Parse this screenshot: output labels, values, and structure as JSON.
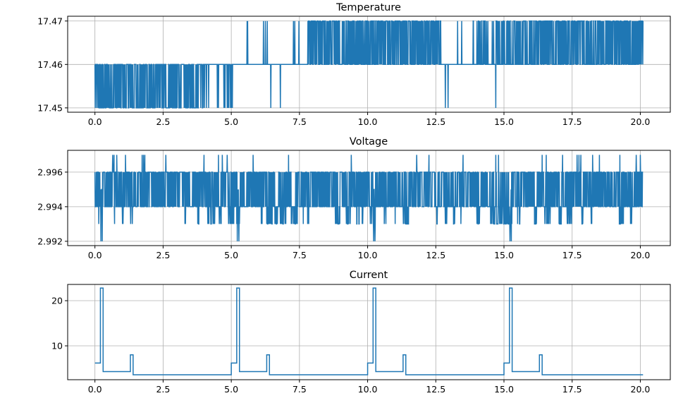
{
  "chart_data": [
    {
      "type": "line",
      "title": "Temperature",
      "xlabel": "",
      "ylabel": "",
      "xlim": [
        -1.0,
        21.1
      ],
      "ylim": [
        17.449,
        17.4711
      ],
      "xticks": [
        0.0,
        2.5,
        5.0,
        7.5,
        10.0,
        12.5,
        15.0,
        17.5,
        20.0
      ],
      "xtick_labels": [
        "0.0",
        "2.5",
        "5.0",
        "7.5",
        "10.0",
        "12.5",
        "15.0",
        "17.5",
        "20.0"
      ],
      "yticks": [
        17.45,
        17.46,
        17.47
      ],
      "ytick_labels": [
        "17.45",
        "17.46",
        "17.47"
      ],
      "grid": true,
      "color": "#1f77b4",
      "x_end": 20.1,
      "sample_step": 0.01,
      "regimes": [
        {
          "from": 0.0,
          "to": 3.8,
          "base": 17.46,
          "alt": 17.45,
          "alt_fraction": 0.5
        },
        {
          "from": 3.8,
          "to": 5.05,
          "base": 17.46,
          "alt": 17.45,
          "alt_fraction": 0.12
        },
        {
          "from": 5.05,
          "to": 7.8,
          "base": 17.46,
          "alt": 17.47,
          "alt_fraction": 0.0
        },
        {
          "from": 7.8,
          "to": 12.7,
          "base": 17.46,
          "alt": 17.47,
          "alt_fraction": 0.5
        },
        {
          "from": 12.7,
          "to": 13.8,
          "base": 17.46,
          "alt": 17.47,
          "alt_fraction": 0.0
        },
        {
          "from": 13.8,
          "to": 15.9,
          "base": 17.46,
          "alt": 17.47,
          "alt_fraction": 0.3
        },
        {
          "from": 15.9,
          "to": 20.1,
          "base": 17.46,
          "alt": 17.47,
          "alt_fraction": 0.5
        }
      ],
      "spikes": [
        [
          5.58,
          17.47
        ],
        [
          5.6,
          17.47
        ],
        [
          6.18,
          17.47
        ],
        [
          6.25,
          17.47
        ],
        [
          6.32,
          17.47
        ],
        [
          7.28,
          17.47
        ],
        [
          7.33,
          17.47
        ],
        [
          7.48,
          17.47
        ],
        [
          6.45,
          17.45
        ],
        [
          6.8,
          17.45
        ],
        [
          12.85,
          17.45
        ],
        [
          12.95,
          17.45
        ],
        [
          13.3,
          17.47
        ],
        [
          13.45,
          17.47
        ],
        [
          14.7,
          17.45
        ]
      ]
    },
    {
      "type": "line",
      "title": "Voltage",
      "xlabel": "",
      "ylabel": "",
      "xlim": [
        -1.0,
        21.1
      ],
      "ylim": [
        2.99175,
        2.99726
      ],
      "xticks": [
        0.0,
        2.5,
        5.0,
        7.5,
        10.0,
        12.5,
        15.0,
        17.5,
        20.0
      ],
      "xtick_labels": [
        "0.0",
        "2.5",
        "5.0",
        "7.5",
        "10.0",
        "12.5",
        "15.0",
        "17.5",
        "20.0"
      ],
      "yticks": [
        2.992,
        2.994,
        2.996
      ],
      "ytick_labels": [
        "2.992",
        "2.994",
        "2.996"
      ],
      "grid": true,
      "color": "#1f77b4",
      "x_end": 20.1,
      "sample_step": 0.01,
      "band_levels": [
        2.994,
        2.995,
        2.996
      ],
      "dip_2993_ranges": [
        [
          0.1,
          0.15
        ],
        [
          0.7,
          0.75
        ],
        [
          1.0,
          1.05
        ],
        [
          1.3,
          1.4
        ],
        [
          3.3,
          3.33
        ],
        [
          3.7,
          3.85
        ],
        [
          4.1,
          4.4
        ],
        [
          4.55,
          4.65
        ],
        [
          4.9,
          5.3
        ],
        [
          5.5,
          5.55
        ],
        [
          6.1,
          6.15
        ],
        [
          6.3,
          6.5
        ],
        [
          6.6,
          6.7
        ],
        [
          6.8,
          7.0
        ],
        [
          7.2,
          7.5
        ],
        [
          7.6,
          7.65
        ],
        [
          7.8,
          7.85
        ],
        [
          8.8,
          9.0
        ],
        [
          9.2,
          9.4
        ],
        [
          9.6,
          9.7
        ],
        [
          9.8,
          9.85
        ],
        [
          10.1,
          10.3
        ],
        [
          10.6,
          10.7
        ],
        [
          11.0,
          11.1
        ],
        [
          11.3,
          11.5
        ],
        [
          12.5,
          12.55
        ],
        [
          12.8,
          12.9
        ],
        [
          13.1,
          13.2
        ],
        [
          13.4,
          13.45
        ],
        [
          14.0,
          14.1
        ],
        [
          14.5,
          15.3
        ],
        [
          15.5,
          15.6
        ],
        [
          16.1,
          16.2
        ],
        [
          16.5,
          16.7
        ],
        [
          17.0,
          17.1
        ],
        [
          17.3,
          17.5
        ],
        [
          17.8,
          17.9
        ],
        [
          18.2,
          18.3
        ],
        [
          19.2,
          19.4
        ],
        [
          19.6,
          19.7
        ]
      ],
      "dip_2992_times": [
        0.22,
        0.27,
        5.22,
        5.28,
        10.22,
        10.27,
        15.22,
        15.27
      ],
      "spike_2997_times": [
        0.65,
        0.7,
        0.8,
        1.12,
        1.73,
        1.78,
        1.83,
        2.6,
        4.0,
        4.53,
        4.67,
        4.85,
        5.8,
        7.1,
        9.4,
        11.8,
        12.25,
        13.5,
        14.7,
        14.8,
        16.4,
        16.55,
        17.15,
        17.68,
        17.75,
        17.82,
        18.25,
        18.5,
        19.25,
        19.85,
        20.0
      ],
      "gap_times": [
        0.22,
        5.25,
        10.22,
        15.22
      ]
    },
    {
      "type": "line",
      "title": "Current",
      "xlabel": "",
      "ylabel": "",
      "xlim": [
        -1.0,
        21.1
      ],
      "ylim": [
        2.5,
        23.6
      ],
      "xticks": [
        0.0,
        2.5,
        5.0,
        7.5,
        10.0,
        12.5,
        15.0,
        17.5,
        20.0
      ],
      "xtick_labels": [
        "0.0",
        "2.5",
        "5.0",
        "7.5",
        "10.0",
        "12.5",
        "15.0",
        "17.5",
        "20.0"
      ],
      "yticks": [
        10,
        20
      ],
      "ytick_labels": [
        "10",
        "20"
      ],
      "grid": true,
      "color": "#1f77b4",
      "step": true,
      "x": [
        0.0,
        0.2,
        0.3,
        1.3,
        1.4,
        5.0,
        5.2,
        5.3,
        6.3,
        6.4,
        10.0,
        10.2,
        10.3,
        11.3,
        11.4,
        15.0,
        15.2,
        15.3,
        16.3,
        16.4,
        20.1
      ],
      "y": [
        6.2,
        22.8,
        4.3,
        8.0,
        3.6,
        6.2,
        22.8,
        4.3,
        8.0,
        3.6,
        6.2,
        22.8,
        4.3,
        8.0,
        3.6,
        6.2,
        22.8,
        4.3,
        8.0,
        3.6,
        3.6
      ]
    }
  ]
}
